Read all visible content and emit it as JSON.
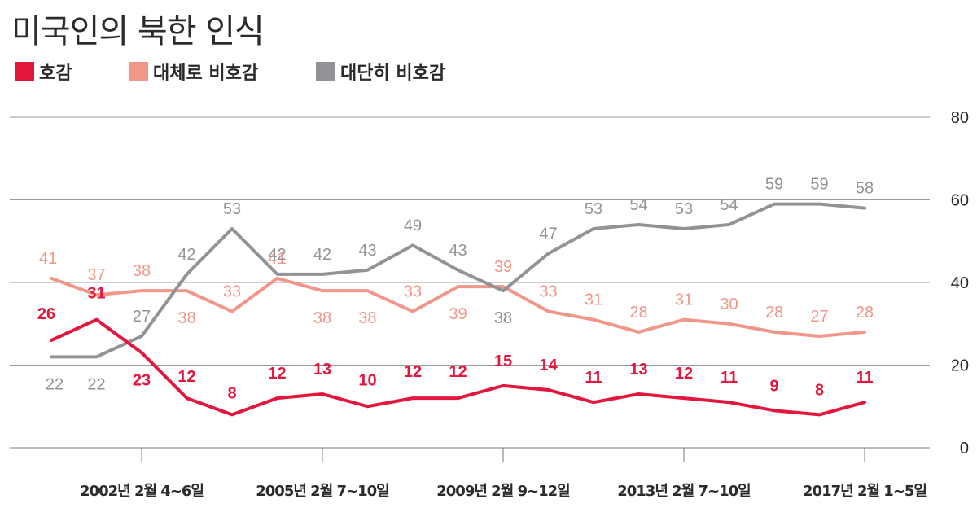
{
  "title": "미국인의 북한 인식",
  "colors": {
    "favorable": "#e3163e",
    "mostly_unfavorable": "#f0978a",
    "very_unfavorable": "#929397",
    "grid": "#888888",
    "text": "#2b2b2b"
  },
  "chart_data": {
    "type": "line",
    "title": "미국인의 북한 인식",
    "xlabel": "",
    "ylabel": "",
    "ylim": [
      0,
      80
    ],
    "yticks": [
      "0",
      "20",
      "40",
      "60",
      "80"
    ],
    "ytick_values": [
      0,
      20,
      40,
      60,
      80
    ],
    "grid": true,
    "legend_placement": "top-left",
    "x_tick_labels": [
      "2002년 2월 4~6일",
      "2005년 2월 7~10일",
      "2009년 2월 9~12일",
      "2013년 2월 7~10일",
      "2017년 2월 1~5일"
    ],
    "x_tick_positions": [
      2,
      6,
      10,
      14,
      18
    ],
    "num_points": 19,
    "series": [
      {
        "name": "호감",
        "color": "#e3163e",
        "values": [
          26,
          31,
          23,
          12,
          8,
          12,
          13,
          10,
          12,
          12,
          15,
          14,
          11,
          13,
          12,
          11,
          9,
          8,
          11
        ],
        "labels": [
          "26",
          "31",
          "23",
          "12",
          "8",
          "12",
          "13",
          "10",
          "12",
          "12",
          "15",
          "14",
          "11",
          "13",
          "12",
          "11",
          "9",
          "8",
          "11"
        ]
      },
      {
        "name": "대체로 비호감",
        "color": "#f0978a",
        "values": [
          41,
          37,
          38,
          38,
          33,
          41,
          38,
          38,
          33,
          39,
          39,
          33,
          31,
          28,
          31,
          30,
          28,
          27,
          28
        ],
        "labels": [
          "41",
          "37",
          "38",
          "38",
          "33",
          "41",
          "38",
          "38",
          "33",
          "39",
          "39",
          "33",
          "31",
          "28",
          "31",
          "30",
          "28",
          "27",
          "28"
        ]
      },
      {
        "name": "대단히 비호감",
        "color": "#929397",
        "values": [
          22,
          22,
          27,
          42,
          53,
          42,
          42,
          43,
          49,
          43,
          38,
          47,
          53,
          54,
          53,
          54,
          59,
          59,
          58
        ],
        "labels": [
          "22",
          "22",
          "27",
          "42",
          "53",
          "42",
          "42",
          "43",
          "49",
          "43",
          "38",
          "47",
          "53",
          "54",
          "53",
          "54",
          "59",
          "59",
          "58"
        ]
      }
    ]
  }
}
